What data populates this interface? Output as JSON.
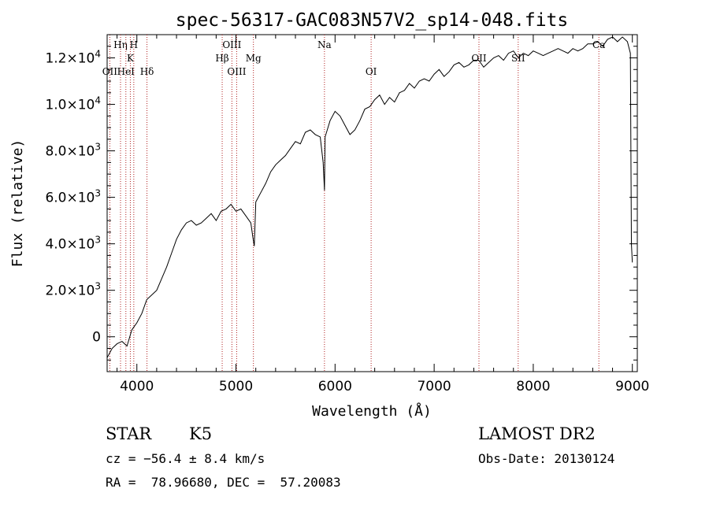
{
  "chart_data": {
    "type": "line",
    "title": "spec-56317-GAC083N57V2_sp14-048.fits",
    "xlabel": "Wavelength (Å)",
    "ylabel": "Flux (relative)",
    "xlim": [
      3700,
      9050
    ],
    "ylim": [
      -1500,
      13000
    ],
    "x_ticks": [
      4000,
      5000,
      6000,
      7000,
      8000,
      9000
    ],
    "x_tick_labels": [
      "4000",
      "5000",
      "6000",
      "7000",
      "8000",
      "9000"
    ],
    "y_ticks": [
      {
        "value": 0,
        "mant": "0",
        "exp": ""
      },
      {
        "value": 2000,
        "mant": "2.0×10",
        "exp": "3"
      },
      {
        "value": 4000,
        "mant": "4.0×10",
        "exp": "3"
      },
      {
        "value": 6000,
        "mant": "6.0×10",
        "exp": "3"
      },
      {
        "value": 8000,
        "mant": "8.0×10",
        "exp": "3"
      },
      {
        "value": 10000,
        "mant": "1.0×10",
        "exp": "4"
      },
      {
        "value": 12000,
        "mant": "1.2×10",
        "exp": "4"
      }
    ],
    "series": [
      {
        "line_color": "#000000",
        "x": [
          3700,
          3750,
          3800,
          3850,
          3900,
          3950,
          4000,
          4050,
          4100,
          4150,
          4200,
          4250,
          4300,
          4350,
          4400,
          4450,
          4500,
          4550,
          4600,
          4650,
          4700,
          4750,
          4800,
          4850,
          4900,
          4950,
          5000,
          5050,
          5100,
          5150,
          5170,
          5185,
          5200,
          5250,
          5300,
          5350,
          5400,
          5450,
          5500,
          5550,
          5600,
          5650,
          5700,
          5750,
          5800,
          5850,
          5880,
          5893,
          5900,
          5950,
          6000,
          6050,
          6100,
          6150,
          6200,
          6250,
          6300,
          6350,
          6400,
          6450,
          6500,
          6550,
          6600,
          6650,
          6700,
          6750,
          6800,
          6850,
          6900,
          6950,
          7000,
          7050,
          7100,
          7150,
          7200,
          7250,
          7300,
          7350,
          7400,
          7450,
          7500,
          7550,
          7600,
          7650,
          7700,
          7750,
          7800,
          7850,
          7900,
          7950,
          8000,
          8050,
          8100,
          8150,
          8200,
          8250,
          8300,
          8350,
          8400,
          8450,
          8500,
          8550,
          8600,
          8650,
          8700,
          8750,
          8800,
          8850,
          8900,
          8950,
          8980,
          8990,
          9000
        ],
        "y": [
          -900,
          -500,
          -300,
          -200,
          -400,
          300,
          600,
          1000,
          1600,
          1800,
          2000,
          2500,
          3000,
          3600,
          4200,
          4600,
          4900,
          5000,
          4800,
          4900,
          5100,
          5300,
          5000,
          5400,
          5500,
          5700,
          5400,
          5500,
          5200,
          4900,
          4300,
          3900,
          5800,
          6200,
          6600,
          7100,
          7400,
          7600,
          7800,
          8100,
          8400,
          8300,
          8800,
          8900,
          8700,
          8600,
          7500,
          6300,
          8600,
          9300,
          9700,
          9500,
          9100,
          8700,
          8900,
          9300,
          9800,
          9900,
          10200,
          10400,
          10000,
          10300,
          10100,
          10500,
          10600,
          10900,
          10700,
          11000,
          11100,
          11000,
          11300,
          11500,
          11200,
          11400,
          11700,
          11800,
          11600,
          11700,
          11900,
          11900,
          11600,
          11800,
          12000,
          12100,
          11900,
          12200,
          12300,
          12000,
          12200,
          12100,
          12300,
          12200,
          12100,
          12200,
          12300,
          12400,
          12300,
          12200,
          12400,
          12300,
          12400,
          12600,
          12600,
          12700,
          12500,
          12800,
          12900,
          12700,
          12900,
          12700,
          12200,
          4000,
          3200
        ]
      }
    ],
    "lines": {
      "color": "#b02020",
      "items": [
        {
          "x": 3727,
          "label": "OII",
          "row": 3
        },
        {
          "x": 3835,
          "label": "Hη",
          "row": 1
        },
        {
          "x": 3889,
          "label": "HeI",
          "row": 3
        },
        {
          "x": 3934,
          "label": "K",
          "row": 2
        },
        {
          "x": 3969,
          "label": "H",
          "row": 1
        },
        {
          "x": 4102,
          "label": "Hδ",
          "row": 3
        },
        {
          "x": 4861,
          "label": "Hβ",
          "row": 2
        },
        {
          "x": 4959,
          "label": "OIII",
          "row": 1
        },
        {
          "x": 5007,
          "label": "OIII",
          "row": 3
        },
        {
          "x": 5176,
          "label": "Mg",
          "row": 2
        },
        {
          "x": 5893,
          "label": "Na",
          "row": 1
        },
        {
          "x": 6364,
          "label": "OI",
          "row": 3
        },
        {
          "x": 7452,
          "label": "OII",
          "row": 2
        },
        {
          "x": 7848,
          "label": "SII",
          "row": 2
        },
        {
          "x": 8662,
          "label": "Ca",
          "row": 1
        }
      ]
    }
  },
  "info": {
    "object_class": "STAR",
    "subclass": "K5",
    "survey": "LAMOST DR2",
    "cz": "cz = −56.4 ± 8.4 km/s",
    "obs_date": "Obs-Date: 20130124",
    "coords": "RA =  78.96680, DEC =  57.20083"
  }
}
